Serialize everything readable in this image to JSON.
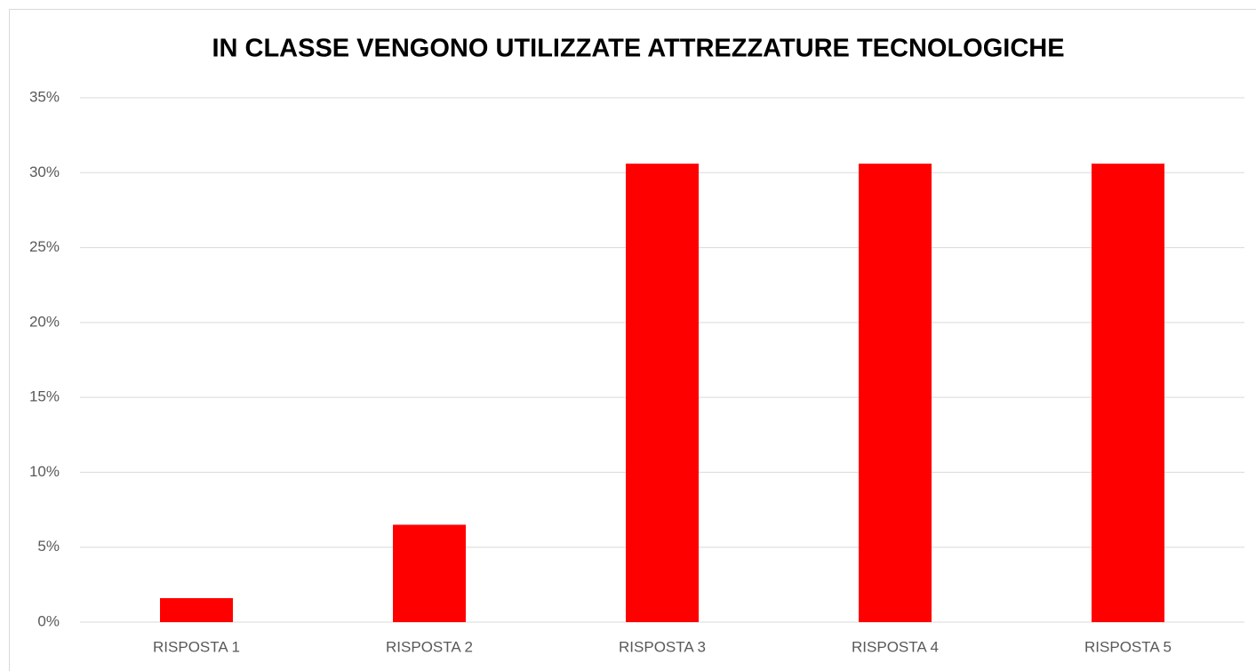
{
  "chart_data": {
    "type": "bar",
    "title": "IN CLASSE VENGONO UTILIZZATE ATTREZZATURE TECNOLOGICHE",
    "categories": [
      "RISPOSTA 1",
      "RISPOSTA 2",
      "RISPOSTA 3",
      "RISPOSTA 4",
      "RISPOSTA 5"
    ],
    "values": [
      1.6,
      6.5,
      30.6,
      30.6,
      30.6
    ],
    "color": "#ff0000",
    "ylim": [
      0,
      35
    ],
    "yticks": [
      {
        "value": 0,
        "label": "0%"
      },
      {
        "value": 5,
        "label": "5%"
      },
      {
        "value": 10,
        "label": "10%"
      },
      {
        "value": 15,
        "label": "15%"
      },
      {
        "value": 20,
        "label": "20%"
      },
      {
        "value": 25,
        "label": "25%"
      },
      {
        "value": 30,
        "label": "30%"
      },
      {
        "value": 35,
        "label": "35%"
      }
    ],
    "grid": true
  }
}
